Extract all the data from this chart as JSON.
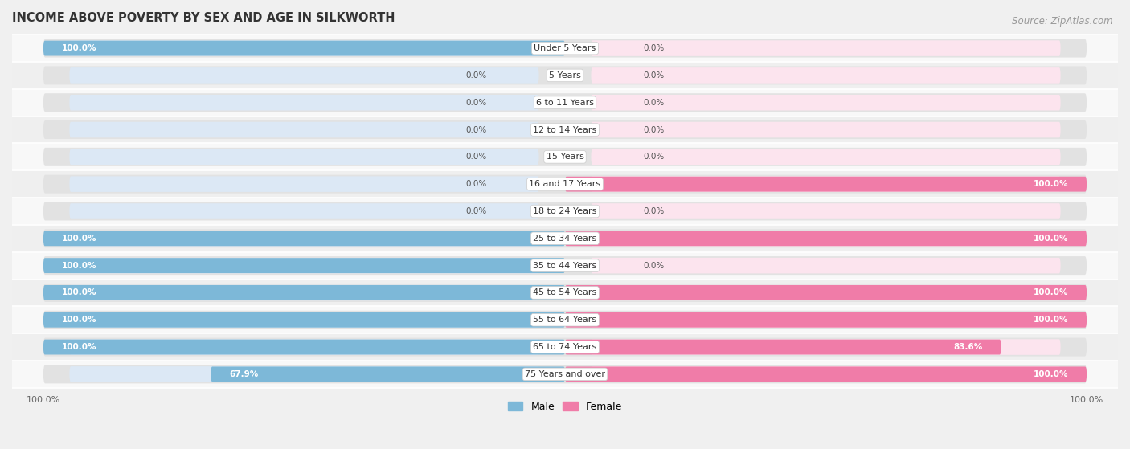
{
  "title": "INCOME ABOVE POVERTY BY SEX AND AGE IN SILKWORTH",
  "source": "Source: ZipAtlas.com",
  "categories": [
    "Under 5 Years",
    "5 Years",
    "6 to 11 Years",
    "12 to 14 Years",
    "15 Years",
    "16 and 17 Years",
    "18 to 24 Years",
    "25 to 34 Years",
    "35 to 44 Years",
    "45 to 54 Years",
    "55 to 64 Years",
    "65 to 74 Years",
    "75 Years and over"
  ],
  "male": [
    100.0,
    0.0,
    0.0,
    0.0,
    0.0,
    0.0,
    0.0,
    100.0,
    100.0,
    100.0,
    100.0,
    100.0,
    67.9
  ],
  "female": [
    0.0,
    0.0,
    0.0,
    0.0,
    0.0,
    100.0,
    0.0,
    100.0,
    0.0,
    100.0,
    100.0,
    83.6,
    100.0
  ],
  "male_color": "#7db8d8",
  "female_color": "#f07ca8",
  "bg_color": "#f0f0f0",
  "bar_bg_color": "#e2e2e2",
  "bar_bg_inner_color": "#dce8f5",
  "bar_bg_inner_female_color": "#fce4ee",
  "title_fontsize": 10.5,
  "source_fontsize": 8.5,
  "label_fontsize": 8,
  "bar_label_fontsize": 7.5,
  "xlim": 100,
  "legend_male": "Male",
  "legend_female": "Female",
  "row_bg_light": "#f8f8f8",
  "row_bg_dark": "#efefef"
}
